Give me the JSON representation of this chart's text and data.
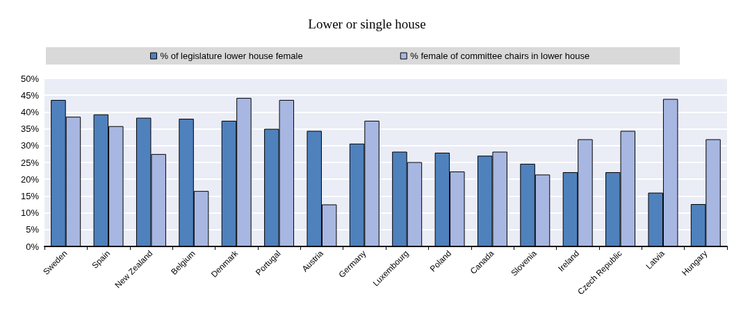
{
  "chart_data": {
    "type": "bar",
    "title": "Lower or single house",
    "categories": [
      "Sweden",
      "Spain",
      "New Zealand",
      "Belgium",
      "Denmark",
      "Portugal",
      "Austria",
      "Germany",
      "Luxembourg",
      "Poland",
      "Canada",
      "Slovenia",
      "Ireland",
      "Czech Republic",
      "Latvia",
      "Hungary"
    ],
    "series": [
      {
        "name": "% of legislature lower house female",
        "color": "#4f81bd",
        "values": [
          43.6,
          39.3,
          38.3,
          38.0,
          37.4,
          35.0,
          34.4,
          30.6,
          28.2,
          27.9,
          27.0,
          24.6,
          22.1,
          22.1,
          16.0,
          12.6
        ]
      },
      {
        "name": "% female of committee chairs in lower house",
        "color": "#a7b7e1",
        "values": [
          38.6,
          35.8,
          27.5,
          16.5,
          44.2,
          43.6,
          12.5,
          37.4,
          25.1,
          22.3,
          28.2,
          21.4,
          31.9,
          34.4,
          43.9,
          31.9
        ]
      }
    ],
    "ylim": [
      0,
      50
    ],
    "yticks": [
      {
        "value": 0,
        "label": "0%"
      },
      {
        "value": 5,
        "label": "5%"
      },
      {
        "value": 10,
        "label": "10%"
      },
      {
        "value": 15,
        "label": "15%"
      },
      {
        "value": 20,
        "label": "20%"
      },
      {
        "value": 25,
        "label": "25%"
      },
      {
        "value": 30,
        "label": "30%"
      },
      {
        "value": 35,
        "label": "35%"
      },
      {
        "value": 40,
        "label": "40%"
      },
      {
        "value": 45,
        "label": "45%"
      },
      {
        "value": 50,
        "label": "50%"
      }
    ],
    "grid": "y",
    "legend": "top"
  }
}
